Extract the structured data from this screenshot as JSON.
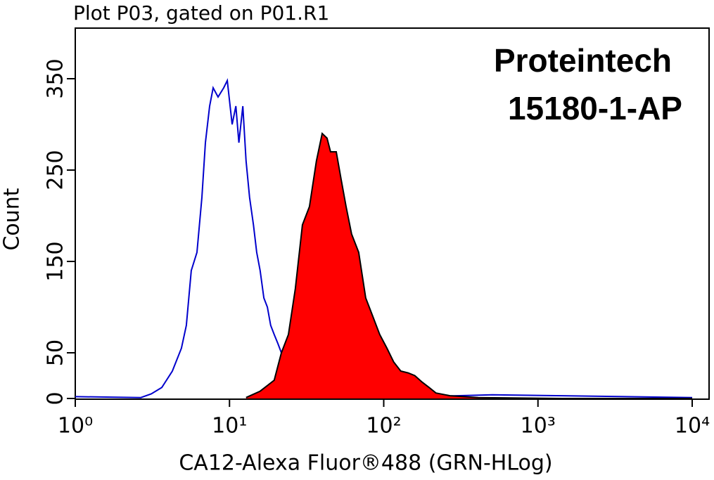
{
  "chart_data": {
    "type": "histogram",
    "title": "Plot P03, gated on P01.R1",
    "annotations": [
      "Proteintech",
      "15180-1-AP"
    ],
    "x_label": "CA12-Alexa Fluor®488 (GRN-HLog)",
    "y_label": "Count",
    "xscale": "log",
    "xlim": [
      1,
      10000
    ],
    "xticks": [
      {
        "value": 1,
        "label": "10⁰"
      },
      {
        "value": 10,
        "label": "10¹"
      },
      {
        "value": 100,
        "label": "10²"
      },
      {
        "value": 1000,
        "label": "10³"
      },
      {
        "value": 10000,
        "label": "10⁴"
      }
    ],
    "ylim": [
      0,
      405
    ],
    "yticks": [
      0,
      50,
      150,
      250,
      350
    ],
    "series": [
      {
        "color": "#0000cc",
        "filled": false,
        "x": [
          1,
          2.66,
          3.11,
          3.64,
          4.26,
          4.88,
          5.25,
          5.65,
          6.15,
          6.62,
          6.98,
          7.43,
          7.83,
          8.43,
          9.17,
          9.67,
          10.4,
          11.0,
          11.5,
          12.2,
          12.8,
          13.5,
          14.3,
          15.0,
          15.8,
          16.7,
          17.6,
          18.5,
          19.5,
          20.6,
          21.7,
          22.9,
          26.7,
          36.6,
          61.9,
          177,
          506,
          1445,
          10000
        ],
        "values": [
          2,
          1,
          5,
          12,
          30,
          55,
          80,
          140,
          160,
          220,
          280,
          320,
          340,
          330,
          340,
          348,
          300,
          320,
          280,
          320,
          260,
          220,
          190,
          160,
          140,
          110,
          100,
          80,
          70,
          60,
          50,
          20,
          5,
          2,
          1,
          2,
          4,
          3,
          1
        ]
      },
      {
        "color": "#ff0000",
        "edge_color": "#000000",
        "filled": true,
        "x": [
          12.8,
          15.8,
          19.5,
          21.7,
          24.1,
          26.7,
          29.7,
          33.0,
          36.6,
          39.9,
          42.9,
          45.2,
          49.2,
          52.9,
          57.0,
          61.9,
          68.8,
          76.4,
          84.9,
          94.2,
          105,
          116,
          129,
          144,
          159,
          177,
          197,
          218,
          269,
          410,
          1445,
          10000
        ],
        "values": [
          1,
          8,
          20,
          50,
          70,
          120,
          190,
          210,
          260,
          290,
          285,
          270,
          270,
          240,
          210,
          180,
          160,
          110,
          90,
          70,
          55,
          40,
          30,
          28,
          25,
          18,
          12,
          6,
          3,
          1,
          0,
          0
        ]
      }
    ]
  }
}
